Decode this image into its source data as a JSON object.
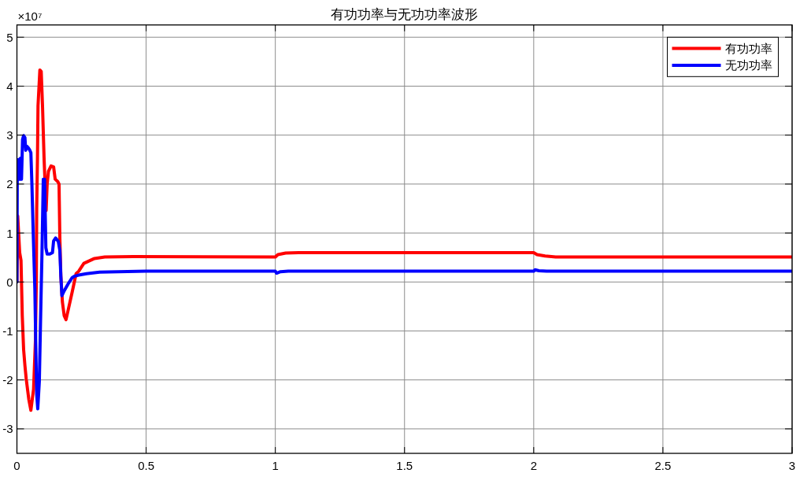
{
  "chart_data": {
    "type": "line",
    "title": "有功功率与无功功率波形",
    "annotations": [
      "×10⁷"
    ],
    "xlim": [
      0,
      3
    ],
    "xticks": [
      0,
      0.5,
      1,
      1.5,
      2,
      2.5,
      3
    ],
    "ylim": [
      -3.5,
      5.25
    ],
    "yticks": [
      -3,
      -2,
      -1,
      0,
      1,
      2,
      3,
      4,
      5
    ],
    "grid": true,
    "legend": "top right",
    "line_style": "solid",
    "series": [
      {
        "name": "有功功率",
        "color": "#ff0000",
        "x": [
          0,
          0.003,
          0.0106,
          0.0158,
          0.0207,
          0.0259,
          0.031,
          0.036,
          0.046,
          0.054,
          0.0644,
          0.0715,
          0.075,
          0.0766,
          0.0795,
          0.0816,
          0.0888,
          0.094,
          0.099,
          0.105,
          0.109,
          0.113,
          0.117,
          0.122,
          0.132,
          0.142,
          0.148,
          0.158,
          0.163,
          0.166,
          0.17,
          0.176,
          0.183,
          0.19,
          0.198,
          0.214,
          0.229,
          0.239,
          0.259,
          0.3,
          0.34,
          0.45,
          1.0,
          1.01,
          1.04,
          1.09,
          2.0,
          2.013,
          2.044,
          2.085,
          3.0
        ],
        "values": [
          0,
          1.35,
          0.6,
          0.44,
          -0.69,
          -1.38,
          -1.71,
          -1.98,
          -2.4,
          -2.62,
          -2.19,
          -1.22,
          0,
          1.5,
          2.53,
          3.6,
          4.33,
          4.3,
          3.6,
          2.53,
          2.0,
          1.46,
          2.0,
          2.26,
          2.37,
          2.35,
          2.1,
          2.05,
          2.0,
          0.92,
          0.12,
          -0.41,
          -0.69,
          -0.77,
          -0.58,
          -0.2,
          0.17,
          0.22,
          0.38,
          0.48,
          0.51,
          0.52,
          0.51,
          0.56,
          0.59,
          0.6,
          0.6,
          0.56,
          0.53,
          0.51,
          0.51
        ]
      },
      {
        "name": "无功功率",
        "color": "#0000ff",
        "x": [
          0,
          0.0015,
          0.0055,
          0.0106,
          0.0137,
          0.0177,
          0.0218,
          0.0259,
          0.031,
          0.034,
          0.039,
          0.044,
          0.049,
          0.054,
          0.058,
          0.062,
          0.0694,
          0.0736,
          0.0766,
          0.0806,
          0.0867,
          0.0918,
          0.097,
          0.102,
          0.107,
          0.112,
          0.117,
          0.127,
          0.1375,
          0.142,
          0.1497,
          0.16,
          0.166,
          0.17,
          0.174,
          0.183,
          0.198,
          0.214,
          0.2236,
          0.239,
          0.269,
          0.32,
          0.5,
          1.0,
          1.005,
          1.02,
          1.05,
          2.0,
          2.005,
          2.02,
          2.05,
          3.0
        ],
        "values": [
          0,
          2.42,
          2.5,
          2.1,
          2.53,
          2.1,
          2.91,
          2.99,
          2.95,
          2.69,
          2.77,
          2.74,
          2.7,
          2.64,
          2.0,
          1.2,
          -0.15,
          -1.49,
          -2.3,
          -2.59,
          -2.03,
          -0.69,
          0.6,
          2.1,
          2.1,
          0.7,
          0.57,
          0.57,
          0.6,
          0.84,
          0.9,
          0.83,
          0.65,
          0.12,
          -0.28,
          -0.18,
          -0.04,
          0.09,
          0.12,
          0.14,
          0.17,
          0.2,
          0.22,
          0.22,
          0.18,
          0.21,
          0.22,
          0.22,
          0.25,
          0.23,
          0.22,
          0.22
        ]
      }
    ]
  }
}
